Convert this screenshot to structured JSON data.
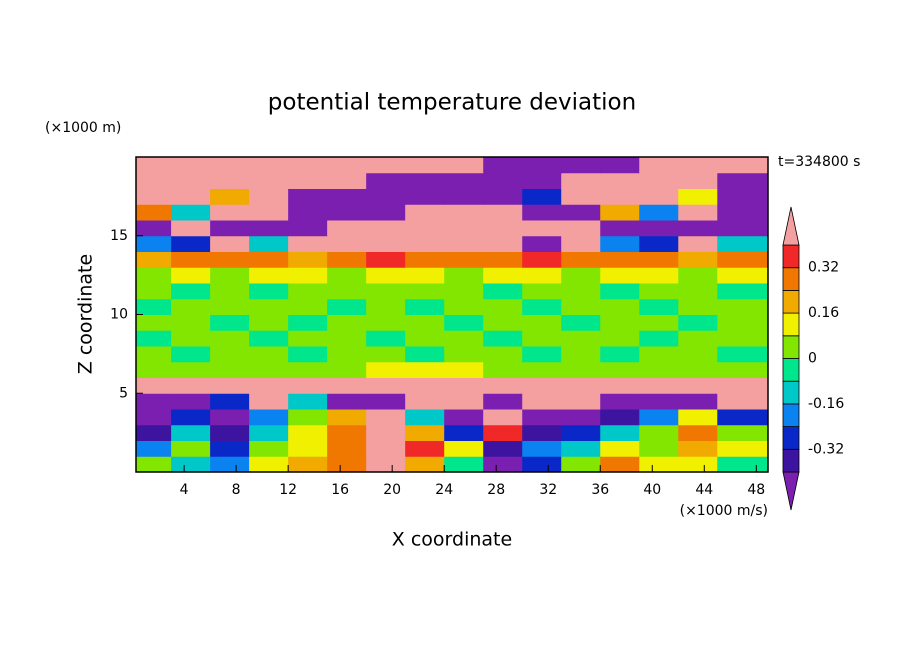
{
  "chart_data": {
    "type": "contour",
    "title": "potential temperature deviation",
    "x_label": "X coordinate",
    "y_label": "Z coordinate",
    "x_unit": "(×1000 m/s)",
    "y_unit": "(×1000 m)",
    "time_label": "t=334800 s",
    "xlim": [
      0.3,
      48.9
    ],
    "ylim": [
      0,
      20
    ],
    "xticks": [
      4,
      8,
      12,
      16,
      20,
      24,
      28,
      32,
      36,
      40,
      44,
      48
    ],
    "yticks": [
      5,
      10,
      15
    ],
    "x": [
      1.5,
      4.5,
      7.5,
      10.5,
      13.5,
      16.5,
      19.5,
      22.5,
      25.5,
      28.5,
      31.5,
      34.5,
      37.5,
      40.5,
      43.5,
      46.5
    ],
    "z": [
      0.5,
      1.5,
      2.5,
      3.5,
      4.5,
      5.5,
      6.5,
      7.5,
      8.5,
      9.5,
      10.5,
      11.5,
      12.5,
      13.5,
      14.5,
      15.5,
      16.5,
      17.5,
      18.5,
      19.5
    ],
    "values": [
      [
        0.05,
        -0.1,
        -0.2,
        0.1,
        0.2,
        0.3,
        0.45,
        0.2,
        -0.05,
        -0.45,
        -0.3,
        0.05,
        0.3,
        0.1,
        0.15,
        -0.05
      ],
      [
        -0.2,
        0.05,
        -0.3,
        0.05,
        0.15,
        0.3,
        0.45,
        0.35,
        0.1,
        -0.4,
        -0.2,
        -0.1,
        0.15,
        0.05,
        0.2,
        0.1
      ],
      [
        -0.35,
        -0.15,
        -0.4,
        -0.1,
        0.1,
        0.25,
        0.45,
        0.2,
        -0.3,
        0.35,
        -0.35,
        -0.3,
        -0.1,
        0.05,
        0.25,
        0.0
      ],
      [
        -0.45,
        -0.3,
        -0.45,
        -0.2,
        0.05,
        0.2,
        0.45,
        -0.1,
        -0.45,
        0.4,
        -0.45,
        -0.45,
        -0.35,
        -0.2,
        0.1,
        -0.3
      ],
      [
        -0.45,
        -0.45,
        -0.3,
        0.45,
        -0.1,
        -0.45,
        -0.45,
        0.45,
        0.45,
        -0.45,
        0.45,
        0.45,
        -0.45,
        -0.45,
        -0.45,
        0.45
      ],
      [
        0.45,
        0.45,
        0.45,
        0.45,
        0.45,
        0.45,
        0.45,
        0.45,
        0.45,
        0.45,
        0.45,
        0.45,
        0.45,
        0.45,
        0.45,
        0.45
      ],
      [
        0.05,
        0.05,
        0.05,
        0.05,
        0.05,
        0.05,
        0.1,
        0.1,
        0.1,
        0.05,
        0.05,
        0.05,
        0.05,
        0.05,
        0.05,
        0.05
      ],
      [
        0.05,
        -0.03,
        0.05,
        0.05,
        -0.03,
        0.05,
        0.05,
        -0.03,
        0.05,
        0.05,
        -0.03,
        0.05,
        -0.03,
        0.05,
        0.05,
        -0.03
      ],
      [
        -0.03,
        0.05,
        0.05,
        -0.03,
        0.05,
        0.05,
        -0.03,
        0.05,
        0.05,
        -0.03,
        0.05,
        0.05,
        0.05,
        -0.03,
        0.05,
        0.05
      ],
      [
        0.05,
        0.05,
        -0.03,
        0.05,
        -0.03,
        0.05,
        0.05,
        0.05,
        -0.03,
        0.05,
        0.05,
        -0.03,
        0.05,
        0.05,
        -0.03,
        0.05
      ],
      [
        -0.03,
        0.05,
        0.05,
        0.05,
        0.05,
        -0.03,
        0.05,
        -0.03,
        0.05,
        0.05,
        -0.03,
        0.05,
        0.05,
        -0.03,
        0.05,
        0.05
      ],
      [
        0.05,
        -0.03,
        0.05,
        -0.03,
        0.05,
        0.05,
        0.05,
        0.05,
        0.05,
        -0.03,
        0.05,
        0.05,
        -0.03,
        0.05,
        0.05,
        -0.03
      ],
      [
        0.05,
        0.1,
        0.05,
        0.1,
        0.1,
        0.05,
        0.1,
        0.1,
        0.05,
        0.1,
        0.1,
        0.05,
        0.1,
        0.1,
        0.05,
        0.1
      ],
      [
        0.2,
        0.25,
        0.3,
        0.25,
        0.2,
        0.3,
        0.35,
        0.3,
        0.25,
        0.3,
        0.35,
        0.3,
        0.25,
        0.3,
        0.2,
        0.25
      ],
      [
        -0.2,
        -0.3,
        0.45,
        -0.1,
        0.45,
        0.45,
        0.45,
        0.45,
        0.45,
        0.45,
        -0.45,
        0.45,
        -0.2,
        -0.3,
        0.45,
        -0.1
      ],
      [
        -0.45,
        0.45,
        -0.45,
        -0.45,
        -0.45,
        0.45,
        0.45,
        0.45,
        0.45,
        0.45,
        0.45,
        0.45,
        -0.45,
        -0.45,
        -0.45,
        -0.45
      ],
      [
        0.3,
        -0.1,
        0.45,
        0.45,
        -0.45,
        -0.45,
        -0.45,
        0.45,
        0.45,
        0.45,
        -0.45,
        -0.45,
        0.2,
        -0.2,
        0.45,
        -0.45
      ],
      [
        0.45,
        0.45,
        0.2,
        0.45,
        -0.45,
        -0.45,
        -0.45,
        -0.45,
        -0.45,
        -0.45,
        -0.3,
        0.45,
        0.45,
        0.45,
        0.1,
        -0.45
      ],
      [
        0.45,
        0.45,
        0.45,
        0.45,
        0.45,
        0.45,
        -0.45,
        -0.45,
        -0.45,
        -0.45,
        -0.45,
        0.45,
        0.45,
        0.45,
        0.45,
        -0.45
      ],
      [
        0.45,
        0.45,
        0.45,
        0.45,
        0.45,
        0.45,
        0.45,
        0.45,
        0.45,
        -0.45,
        -0.45,
        -0.45,
        -0.45,
        0.45,
        0.45,
        0.45
      ]
    ],
    "levels": [
      -0.4,
      -0.32,
      -0.24,
      -0.16,
      -0.08,
      0,
      0.08,
      0.16,
      0.24,
      0.32,
      0.4
    ],
    "colors": [
      "#7a1fb0",
      "#3c14a0",
      "#0a28c8",
      "#0a82f0",
      "#00c8c8",
      "#00e68c",
      "#82e600",
      "#f0f000",
      "#f0aa00",
      "#f07800",
      "#f02828",
      "#f5a0a0"
    ],
    "colorbar_ticks": [
      -0.32,
      -0.16,
      0,
      0.16,
      0.32
    ]
  }
}
